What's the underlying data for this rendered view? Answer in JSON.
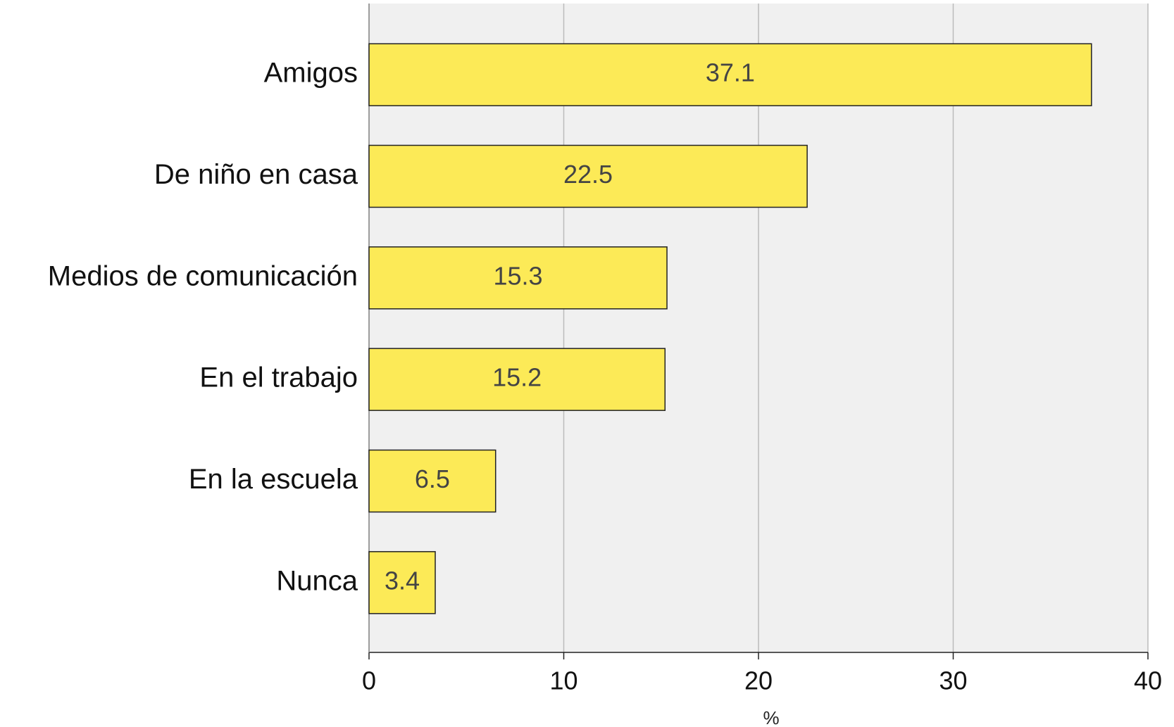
{
  "chart_data": {
    "type": "bar",
    "orientation": "horizontal",
    "categories": [
      "Amigos",
      "De niño en casa",
      "Medios de comunicación",
      "En el trabajo",
      "En la escuela",
      "Nunca"
    ],
    "values": [
      37.1,
      22.5,
      15.3,
      15.2,
      6.5,
      3.4
    ],
    "color": "#fcea57",
    "xlabel": "%",
    "xlim": [
      0,
      40
    ],
    "xticks": [
      0,
      10,
      20,
      30,
      40
    ],
    "grid": true
  }
}
